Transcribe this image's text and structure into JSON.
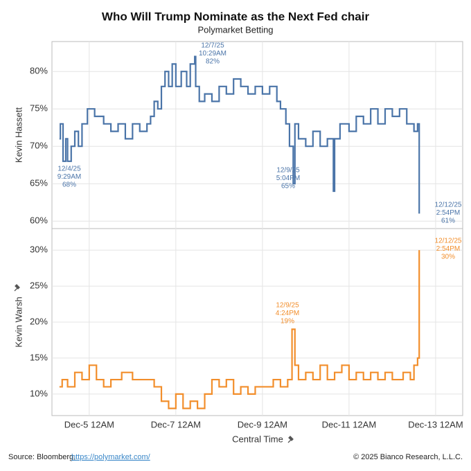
{
  "title": "Who Will Trump Nominate as the Next Fed chair",
  "subtitle": "Polymarket Betting",
  "source": "Source: Bloomberg,",
  "source_link": "https://polymarket.com/",
  "copyright": "© 2025 Bianco Research, L.L.C.",
  "chart_data": [
    {
      "type": "line",
      "ylabel": "Kevin Hassett",
      "xlim": [
        "2025-12-04T03:20",
        "2025-12-13T15:00"
      ],
      "ylim": [
        59,
        84
      ],
      "yticks": [
        {
          "value": 60,
          "label": "60%"
        },
        {
          "value": 65,
          "label": "65%"
        },
        {
          "value": 70,
          "label": "70%"
        },
        {
          "value": 75,
          "label": "75%"
        },
        {
          "value": 80,
          "label": "80%"
        }
      ],
      "grid": true,
      "series": [
        {
          "color": "#4a74a8",
          "x": [
            "2025-12-04T07:30",
            "2025-12-04T08:00",
            "2025-12-04T09:29",
            "2025-12-04T11:00",
            "2025-12-04T12:00",
            "2025-12-04T14:00",
            "2025-12-04T16:00",
            "2025-12-04T18:00",
            "2025-12-04T20:00",
            "2025-12-04T23:00",
            "2025-12-05T03:00",
            "2025-12-05T08:00",
            "2025-12-05T12:00",
            "2025-12-05T16:00",
            "2025-12-05T20:00",
            "2025-12-06T00:00",
            "2025-12-06T04:00",
            "2025-12-06T08:00",
            "2025-12-06T10:00",
            "2025-12-06T12:00",
            "2025-12-06T14:00",
            "2025-12-06T16:00",
            "2025-12-06T18:00",
            "2025-12-06T20:00",
            "2025-12-06T22:00",
            "2025-12-07T00:00",
            "2025-12-07T03:00",
            "2025-12-07T06:00",
            "2025-12-07T08:00",
            "2025-12-07T10:29",
            "2025-12-07T11:00",
            "2025-12-07T13:00",
            "2025-12-07T16:00",
            "2025-12-07T20:00",
            "2025-12-08T00:00",
            "2025-12-08T04:00",
            "2025-12-08T08:00",
            "2025-12-08T12:00",
            "2025-12-08T16:00",
            "2025-12-08T20:00",
            "2025-12-09T00:00",
            "2025-12-09T04:00",
            "2025-12-09T08:00",
            "2025-12-09T10:00",
            "2025-12-09T13:00",
            "2025-12-09T15:00",
            "2025-12-09T17:04",
            "2025-12-09T18:00",
            "2025-12-09T20:00",
            "2025-12-10T00:00",
            "2025-12-10T04:00",
            "2025-12-10T08:00",
            "2025-12-10T12:00",
            "2025-12-10T15:20",
            "2025-12-10T16:00",
            "2025-12-10T19:00",
            "2025-12-11T00:00",
            "2025-12-11T04:00",
            "2025-12-11T08:00",
            "2025-12-11T12:00",
            "2025-12-11T16:00",
            "2025-12-11T20:00",
            "2025-12-12T00:00",
            "2025-12-12T04:00",
            "2025-12-12T08:00",
            "2025-12-12T12:00",
            "2025-12-12T14:00",
            "2025-12-12T14:54"
          ],
          "values": [
            71,
            73,
            68,
            71,
            68,
            70,
            72,
            70,
            73,
            75,
            74,
            73,
            72,
            73,
            71,
            73,
            72,
            73,
            74,
            76,
            75,
            78,
            80,
            78,
            81,
            78,
            80,
            78,
            81,
            82,
            78,
            76,
            77,
            76,
            78,
            77,
            79,
            78,
            77,
            78,
            77,
            78,
            76,
            75,
            73,
            70,
            65,
            73,
            71,
            70,
            72,
            70,
            71,
            64,
            71,
            73,
            72,
            74,
            73,
            75,
            73,
            75,
            74,
            75,
            73,
            72,
            73,
            61
          ]
        }
      ],
      "annotations": [
        {
          "lines": [
            "12/4/25",
            "9:29AM",
            "68%"
          ]
        },
        {
          "lines": [
            "12/7/25",
            "10:29AM",
            "82%"
          ]
        },
        {
          "lines": [
            "12/9/25",
            "5:04PM",
            "65%"
          ]
        },
        {
          "lines": [
            "12/12/25",
            "2:54PM",
            "61%"
          ]
        }
      ]
    },
    {
      "type": "line",
      "ylabel": "Kevin Warsh",
      "xlabel": "Central Time",
      "xlim": [
        "2025-12-04T03:20",
        "2025-12-13T15:00"
      ],
      "xticks": [
        {
          "value": "2025-12-05T00:00",
          "label": "Dec-5 12AM"
        },
        {
          "value": "2025-12-07T00:00",
          "label": "Dec-7 12AM"
        },
        {
          "value": "2025-12-09T00:00",
          "label": "Dec-9 12AM"
        },
        {
          "value": "2025-12-11T00:00",
          "label": "Dec-11 12AM"
        },
        {
          "value": "2025-12-13T00:00",
          "label": "Dec-13 12AM"
        }
      ],
      "ylim": [
        7,
        33
      ],
      "yticks": [
        {
          "value": 10,
          "label": "10%"
        },
        {
          "value": 15,
          "label": "15%"
        },
        {
          "value": 20,
          "label": "20%"
        },
        {
          "value": 25,
          "label": "25%"
        },
        {
          "value": 30,
          "label": "30%"
        }
      ],
      "grid": true,
      "series": [
        {
          "color": "#f28e2b",
          "x": [
            "2025-12-04T07:30",
            "2025-12-04T09:00",
            "2025-12-04T12:00",
            "2025-12-04T16:00",
            "2025-12-04T20:00",
            "2025-12-05T00:00",
            "2025-12-05T04:00",
            "2025-12-05T08:00",
            "2025-12-05T12:00",
            "2025-12-05T18:00",
            "2025-12-06T00:00",
            "2025-12-06T10:00",
            "2025-12-06T12:00",
            "2025-12-06T16:00",
            "2025-12-06T20:00",
            "2025-12-07T00:00",
            "2025-12-07T04:00",
            "2025-12-07T08:00",
            "2025-12-07T12:00",
            "2025-12-07T16:00",
            "2025-12-07T20:00",
            "2025-12-08T00:00",
            "2025-12-08T04:00",
            "2025-12-08T08:00",
            "2025-12-08T12:00",
            "2025-12-08T16:00",
            "2025-12-08T20:00",
            "2025-12-09T06:00",
            "2025-12-09T10:00",
            "2025-12-09T14:00",
            "2025-12-09T16:24",
            "2025-12-09T18:00",
            "2025-12-09T20:00",
            "2025-12-10T00:00",
            "2025-12-10T04:00",
            "2025-12-10T08:00",
            "2025-12-10T12:00",
            "2025-12-10T16:00",
            "2025-12-10T20:00",
            "2025-12-11T00:00",
            "2025-12-11T04:00",
            "2025-12-11T08:00",
            "2025-12-11T12:00",
            "2025-12-11T16:00",
            "2025-12-11T20:00",
            "2025-12-12T00:00",
            "2025-12-12T06:00",
            "2025-12-12T10:00",
            "2025-12-12T12:00",
            "2025-12-12T14:00",
            "2025-12-12T14:54"
          ],
          "values": [
            11,
            12,
            11,
            13,
            12,
            14,
            12,
            11,
            12,
            13,
            12,
            12,
            11,
            9,
            8,
            10,
            8,
            9,
            8,
            10,
            12,
            11,
            12,
            10,
            11,
            10,
            11,
            12,
            11,
            12,
            19,
            14,
            12,
            13,
            12,
            14,
            12,
            13,
            14,
            12,
            13,
            12,
            13,
            12,
            13,
            12,
            13,
            12,
            14,
            15,
            30
          ]
        }
      ],
      "annotations": [
        {
          "lines": [
            "12/12/25",
            "2:54PM",
            "30%"
          ]
        },
        {
          "lines": [
            "12/9/25",
            "4:24PM",
            "19%"
          ]
        }
      ]
    }
  ]
}
